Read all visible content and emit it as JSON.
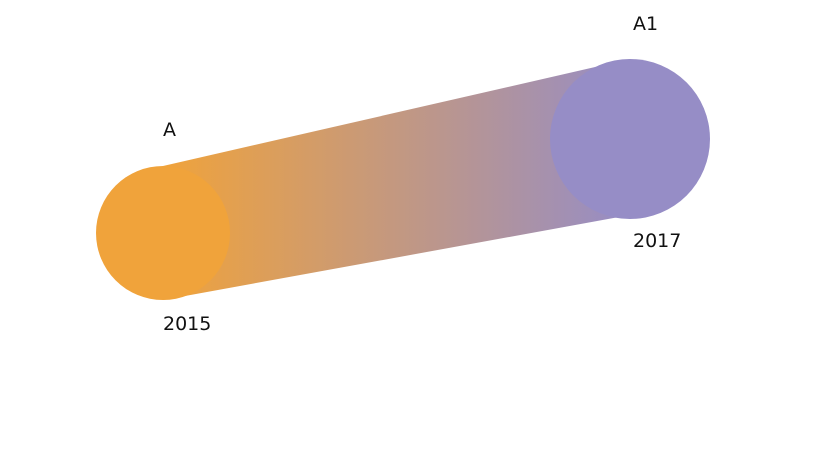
{
  "chart_data": {
    "type": "line",
    "description_kind": "gradient-stroke-connector",
    "x": [
      2015,
      2017
    ],
    "points": [
      {
        "name": "A",
        "year": "2015",
        "color": "#f0a33b"
      },
      {
        "name": "A1",
        "year": "2017",
        "color": "#968dc6"
      }
    ],
    "grid": false,
    "legend": "none"
  }
}
